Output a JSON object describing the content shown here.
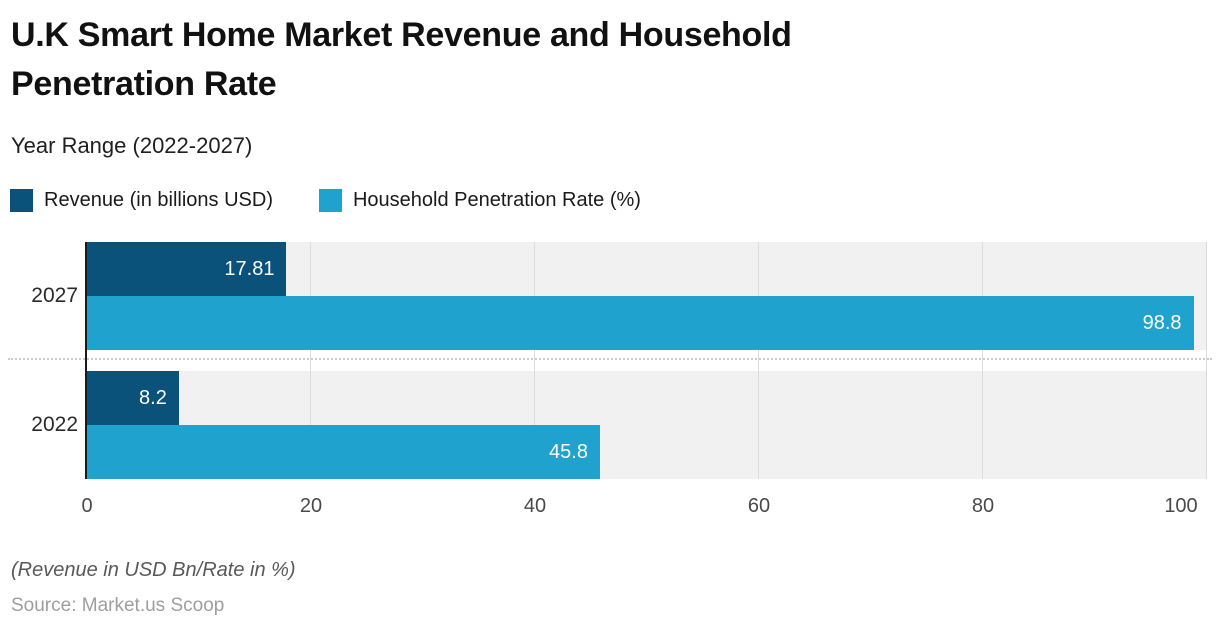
{
  "header": {
    "title": "U.K Smart Home Market Revenue and Household Penetration Rate",
    "subtitle": "Year Range (2022-2027)"
  },
  "chart_data": {
    "type": "bar",
    "orientation": "horizontal",
    "categories": [
      "2027",
      "2022"
    ],
    "series": [
      {
        "name": "Revenue (in billions USD)",
        "color": "#0a527a",
        "values": [
          17.81,
          8.2
        ]
      },
      {
        "name": "Household Penetration Rate (%)",
        "color": "#20a2ce",
        "values": [
          98.8,
          45.8
        ]
      }
    ],
    "xlim": [
      0,
      100
    ],
    "xticks": [
      0,
      20,
      40,
      60,
      80,
      100
    ],
    "grid": true,
    "legend_position": "top",
    "value_labels": "inside-end"
  },
  "footer": {
    "note": "(Revenue in USD Bn/Rate in %)",
    "source": "Source: Market.us Scoop"
  },
  "colors": {
    "revenue": "#0a527a",
    "rate": "#20a2ce",
    "plot_band": "#f1f1f1",
    "gridline": "#dcdcdc",
    "separator": "#cccccc",
    "axis_line": "#1a1a1a",
    "title_text": "#111111",
    "tick_text": "#4a4a4a",
    "source_text": "#9e9e9e"
  }
}
